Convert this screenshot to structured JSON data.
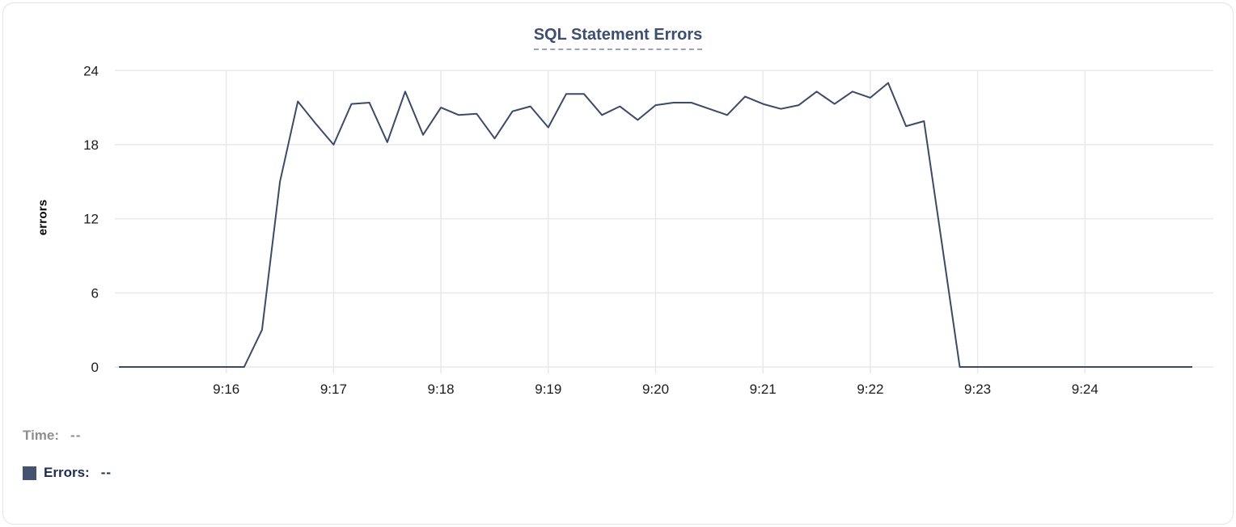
{
  "chart_data": {
    "type": "line",
    "title": "SQL Statement Errors",
    "xlabel": "",
    "ylabel": "errors",
    "ylim": [
      0,
      24
    ],
    "y_ticks": [
      0,
      6,
      12,
      18,
      24
    ],
    "x_tick_labels": [
      "9:16",
      "9:17",
      "9:18",
      "9:19",
      "9:20",
      "9:21",
      "9:22",
      "9:23",
      "9:24"
    ],
    "x_tick_indices": [
      6,
      12,
      18,
      24,
      30,
      36,
      42,
      48,
      54
    ],
    "grid": true,
    "legend_position": "bottom-left",
    "x": [
      "9:15:00",
      "9:15:10",
      "9:15:20",
      "9:15:30",
      "9:15:40",
      "9:15:50",
      "9:16:00",
      "9:16:10",
      "9:16:20",
      "9:16:30",
      "9:16:40",
      "9:16:50",
      "9:17:00",
      "9:17:10",
      "9:17:20",
      "9:17:30",
      "9:17:40",
      "9:17:50",
      "9:18:00",
      "9:18:10",
      "9:18:20",
      "9:18:30",
      "9:18:40",
      "9:18:50",
      "9:19:00",
      "9:19:10",
      "9:19:20",
      "9:19:30",
      "9:19:40",
      "9:19:50",
      "9:20:00",
      "9:20:10",
      "9:20:20",
      "9:20:30",
      "9:20:40",
      "9:20:50",
      "9:21:00",
      "9:21:10",
      "9:21:20",
      "9:21:30",
      "9:21:40",
      "9:21:50",
      "9:22:00",
      "9:22:10",
      "9:22:20",
      "9:22:30",
      "9:22:40",
      "9:22:50",
      "9:23:00",
      "9:23:10",
      "9:23:20",
      "9:23:30",
      "9:23:40",
      "9:23:50",
      "9:24:00",
      "9:24:10",
      "9:24:20",
      "9:24:30",
      "9:24:40",
      "9:24:50",
      "9:25:00"
    ],
    "series": [
      {
        "name": "Errors",
        "values": [
          0,
          0,
          0,
          0,
          0,
          0,
          0,
          0,
          3,
          15,
          21.5,
          19.7,
          18,
          21.3,
          21.4,
          18.2,
          22.3,
          18.8,
          21,
          20.4,
          20.5,
          18.5,
          20.7,
          21.1,
          19.4,
          22.1,
          22.1,
          20.4,
          21.1,
          20,
          21.2,
          21.4,
          21.4,
          20.9,
          20.4,
          21.9,
          21.3,
          20.9,
          21.2,
          22.3,
          21.3,
          22.3,
          21.8,
          23,
          19.5,
          19.9,
          10,
          0,
          0,
          0,
          0,
          0,
          0,
          0,
          0,
          0,
          0,
          0,
          0,
          0,
          0
        ]
      }
    ]
  },
  "legend": {
    "time_label": "Time:",
    "time_value": "--",
    "errors_label": "Errors:",
    "errors_value": "--"
  },
  "colors": {
    "line": "#3b4a67",
    "legend_swatch": "#44536f",
    "title_text": "#3e4e6e",
    "title_underline": "#9aa3b9",
    "grid": "#e9e9ec",
    "tick_text": "#1c1c1e",
    "axis_label_text": "#000000",
    "legend_muted": "#8e8e93",
    "legend_emphasis": "#1e2b52",
    "card_border": "#e3e3e8",
    "background": "#ffffff"
  }
}
